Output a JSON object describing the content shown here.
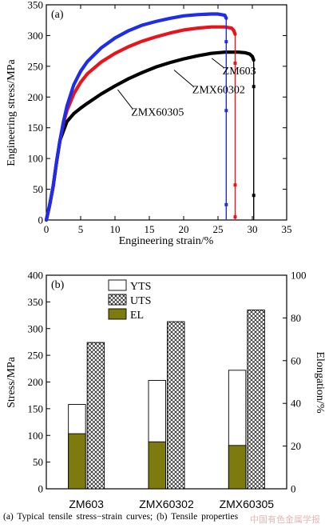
{
  "caption": "(a)   Typical   tensile   stress−strain curves; (b) Tensile properties",
  "watermark": "中国有色金属学报",
  "colors": {
    "ZM603": "#000000",
    "ZMX60302": "#e8141c",
    "ZMX60305": "#1f2ce8",
    "YTS": "#ffffff",
    "UTS": "#ffffff",
    "EL": "#7d7b0d"
  },
  "chart_data": [
    {
      "type": "line",
      "panel_label": "(a)",
      "xlabel": "Engineering strain/%",
      "ylabel": "Engineering stress/MPa",
      "xlim": [
        0,
        35
      ],
      "ylim": [
        0,
        350
      ],
      "xticks": [
        0,
        5,
        10,
        15,
        20,
        25,
        30,
        35
      ],
      "yticks": [
        0,
        50,
        100,
        150,
        200,
        250,
        300,
        350
      ],
      "series": [
        {
          "name": "ZM603",
          "color": "#000000",
          "x": [
            0,
            0.5,
            1,
            1.5,
            2,
            3,
            4,
            5,
            6,
            8,
            10,
            12,
            14,
            16,
            18,
            20,
            22,
            24,
            26,
            28,
            29,
            29.6,
            30,
            30.2
          ],
          "y": [
            0,
            25,
            55,
            95,
            130,
            160,
            173,
            182,
            190,
            205,
            218,
            230,
            240,
            249,
            256,
            262,
            267,
            271,
            273,
            273,
            272,
            270,
            266,
            260
          ],
          "fracture": [
            [
              30.2,
              217
            ],
            [
              30.2,
              40
            ]
          ]
        },
        {
          "name": "ZMX60302",
          "color": "#e8141c",
          "x": [
            0,
            0.5,
            1,
            1.5,
            2,
            2.5,
            3,
            4,
            5,
            6,
            8,
            10,
            12,
            14,
            16,
            18,
            20,
            22,
            24,
            26,
            27,
            27.3,
            27.5
          ],
          "y": [
            0,
            25,
            55,
            95,
            130,
            158,
            178,
            205,
            224,
            238,
            257,
            271,
            282,
            291,
            298,
            304,
            309,
            312,
            314,
            314,
            312,
            308,
            302
          ],
          "fracture": [
            [
              27.5,
              255
            ],
            [
              27.5,
              57
            ],
            [
              27.5,
              5
            ]
          ]
        },
        {
          "name": "ZMX60305",
          "color": "#1f2ce8",
          "x": [
            0,
            0.5,
            1,
            1.5,
            2,
            2.5,
            3,
            4,
            5,
            6,
            8,
            10,
            12,
            14,
            16,
            18,
            20,
            22,
            24,
            25,
            26,
            26.2
          ],
          "y": [
            0,
            25,
            55,
            95,
            130,
            160,
            185,
            220,
            242,
            258,
            280,
            296,
            308,
            317,
            323,
            328,
            332,
            334,
            335,
            335,
            333,
            328
          ],
          "fracture": [
            [
              26.2,
              290
            ],
            [
              26.2,
              178
            ],
            [
              26.2,
              25
            ]
          ]
        }
      ],
      "annotations": [
        {
          "text": "ZM603",
          "target": "ZM603",
          "label_at": [
            28.1,
            237
          ],
          "points_to": [
            24.1,
            263
          ]
        },
        {
          "text": "ZMX60302",
          "target": "ZMX60302",
          "label_at": [
            25.1,
            206
          ],
          "points_to": [
            18.6,
            244
          ]
        },
        {
          "text": "ZMX60305",
          "target": "ZMX60305",
          "label_at": [
            16.2,
            170
          ],
          "points_to": [
            10.4,
            212
          ]
        }
      ]
    },
    {
      "type": "bar",
      "panel_label": "(b)",
      "categories": [
        "ZM603",
        "ZMX60302",
        "ZMX60305"
      ],
      "ylabel": "Stress/MPa",
      "y2label": "Elongation/%",
      "ylim": [
        0,
        400
      ],
      "y2lim": [
        0,
        100
      ],
      "yticks": [
        0,
        50,
        100,
        150,
        200,
        250,
        300,
        350,
        400
      ],
      "y2ticks": [
        0,
        20,
        40,
        60,
        80,
        100
      ],
      "legend": "top-center",
      "series": [
        {
          "name": "YTS",
          "axis": "left",
          "pattern": "none",
          "values": [
            158,
            203,
            222
          ]
        },
        {
          "name": "UTS",
          "axis": "left",
          "pattern": "crosshatch",
          "values": [
            274,
            313,
            335
          ]
        },
        {
          "name": "EL",
          "axis": "right",
          "pattern": "solid",
          "values": [
            25.8,
            22.0,
            20.3
          ]
        }
      ]
    }
  ]
}
